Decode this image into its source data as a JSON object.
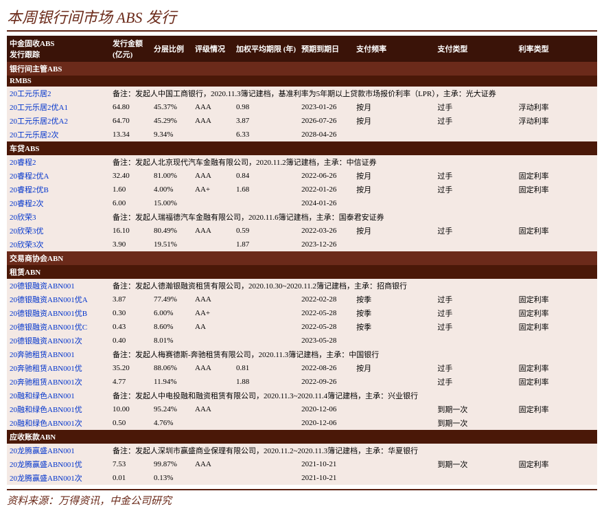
{
  "title": "本周银行间市场 ABS 发行",
  "footer": "资料来源：万得资讯，中金公司研究",
  "headers": [
    "中金固收ABS\n发行跟踪",
    "发行金额\n(亿元)",
    "分层比例",
    "评级情况",
    "加权平均期限 (年)",
    "预期到期日",
    "支付频率",
    "支付类型",
    "利率类型"
  ],
  "sections": [
    {
      "name": "银行间主管ABS",
      "subs": [
        {
          "name": "RMBS",
          "groups": [
            {
              "note": "20工元乐居2",
              "noteTxt": "备注：发起人中国工商银行，2020.11.3簿记建档，基准利率为5年期以上贷款市场报价利率（LPR），主承：光大证券",
              "rows": [
                [
                  "20工元乐居2优A1",
                  "64.80",
                  "45.37%",
                  "AAA",
                  "0.98",
                  "2023-01-26",
                  "按月",
                  "过手",
                  "浮动利率"
                ],
                [
                  "20工元乐居2优A2",
                  "64.70",
                  "45.29%",
                  "AAA",
                  "3.87",
                  "2026-07-26",
                  "按月",
                  "过手",
                  "浮动利率"
                ],
                [
                  "20工元乐居2次",
                  "13.34",
                  "9.34%",
                  "",
                  "6.33",
                  "2028-04-26",
                  "",
                  "",
                  ""
                ]
              ]
            }
          ]
        },
        {
          "name": "车贷ABS",
          "groups": [
            {
              "note": "20睿程2",
              "noteTxt": "备注：发起人北京现代汽车金融有限公司，2020.11.2簿记建档，主承：中信证券",
              "rows": [
                [
                  "20睿程2优A",
                  "32.40",
                  "81.00%",
                  "AAA",
                  "0.84",
                  "2022-06-26",
                  "按月",
                  "过手",
                  "固定利率"
                ],
                [
                  "20睿程2优B",
                  "1.60",
                  "4.00%",
                  "AA+",
                  "1.68",
                  "2022-01-26",
                  "按月",
                  "过手",
                  "固定利率"
                ],
                [
                  "20睿程2次",
                  "6.00",
                  "15.00%",
                  "",
                  "",
                  "2024-01-26",
                  "",
                  "",
                  ""
                ]
              ]
            },
            {
              "note": "20欣荣3",
              "noteTxt": "备注：发起人瑞福德汽车金融有限公司，2020.11.6簿记建档，主承：国泰君安证券",
              "rows": [
                [
                  "20欣荣3优",
                  "16.10",
                  "80.49%",
                  "AAA",
                  "0.59",
                  "2022-03-26",
                  "按月",
                  "过手",
                  "固定利率"
                ],
                [
                  "20欣荣3次",
                  "3.90",
                  "19.51%",
                  "",
                  "1.87",
                  "2023-12-26",
                  "",
                  "",
                  ""
                ]
              ]
            }
          ]
        }
      ]
    },
    {
      "name": "交易商协会ABN",
      "subs": [
        {
          "name": "租赁ABN",
          "groups": [
            {
              "note": "20德银融资ABN001",
              "noteTxt": "备注：发起人德瀚银融资租赁有限公司，2020.10.30~2020.11.2簿记建档，主承：招商银行",
              "rows": [
                [
                  "20德银融资ABN001优A",
                  "3.87",
                  "77.49%",
                  "AAA",
                  "",
                  "2022-02-28",
                  "按季",
                  "过手",
                  "固定利率"
                ],
                [
                  "20德银融资ABN001优B",
                  "0.30",
                  "6.00%",
                  "AA+",
                  "",
                  "2022-05-28",
                  "按季",
                  "过手",
                  "固定利率"
                ],
                [
                  "20德银融资ABN001优C",
                  "0.43",
                  "8.60%",
                  "AA",
                  "",
                  "2022-05-28",
                  "按季",
                  "过手",
                  "固定利率"
                ],
                [
                  "20德银融资ABN001次",
                  "0.40",
                  "8.01%",
                  "",
                  "",
                  "2023-05-28",
                  "",
                  "",
                  ""
                ]
              ]
            },
            {
              "note": "20奔驰租赁ABN001",
              "noteTxt": "备注：发起人梅赛德斯-奔驰租赁有限公司，2020.11.3簿记建档，主承：中国银行",
              "rows": [
                [
                  "20奔驰租赁ABN001优",
                  "35.20",
                  "88.06%",
                  "AAA",
                  "0.81",
                  "2022-08-26",
                  "按月",
                  "过手",
                  "固定利率"
                ],
                [
                  "20奔驰租赁ABN001次",
                  "4.77",
                  "11.94%",
                  "",
                  "1.88",
                  "2022-09-26",
                  "",
                  "过手",
                  "固定利率"
                ]
              ]
            },
            {
              "note": "20融和绿色ABN001",
              "noteTxt": "备注：发起人中电投融和融资租赁有限公司，2020.11.3~2020.11.4簿记建档，主承：兴业银行",
              "rows": [
                [
                  "20融和绿色ABN001优",
                  "10.00",
                  "95.24%",
                  "AAA",
                  "",
                  "2020-12-06",
                  "",
                  "到期一次",
                  "固定利率"
                ],
                [
                  "20融和绿色ABN001次",
                  "0.50",
                  "4.76%",
                  "",
                  "",
                  "2020-12-06",
                  "",
                  "到期一次",
                  ""
                ]
              ]
            }
          ]
        },
        {
          "name": "应收账款ABN",
          "groups": [
            {
              "note": "20龙腾赢盛ABN001",
              "noteTxt": "备注：发起人深圳市赢盛商业保理有限公司，2020.11.2~2020.11.3簿记建档，主承：华夏银行",
              "rows": [
                [
                  "20龙腾赢盛ABN001优",
                  "7.53",
                  "99.87%",
                  "AAA",
                  "",
                  "2021-10-21",
                  "",
                  "到期一次",
                  "固定利率"
                ],
                [
                  "20龙腾赢盛ABN001次",
                  "0.01",
                  "0.13%",
                  "",
                  "",
                  "2021-10-21",
                  "",
                  "",
                  ""
                ]
              ]
            }
          ]
        }
      ]
    }
  ]
}
